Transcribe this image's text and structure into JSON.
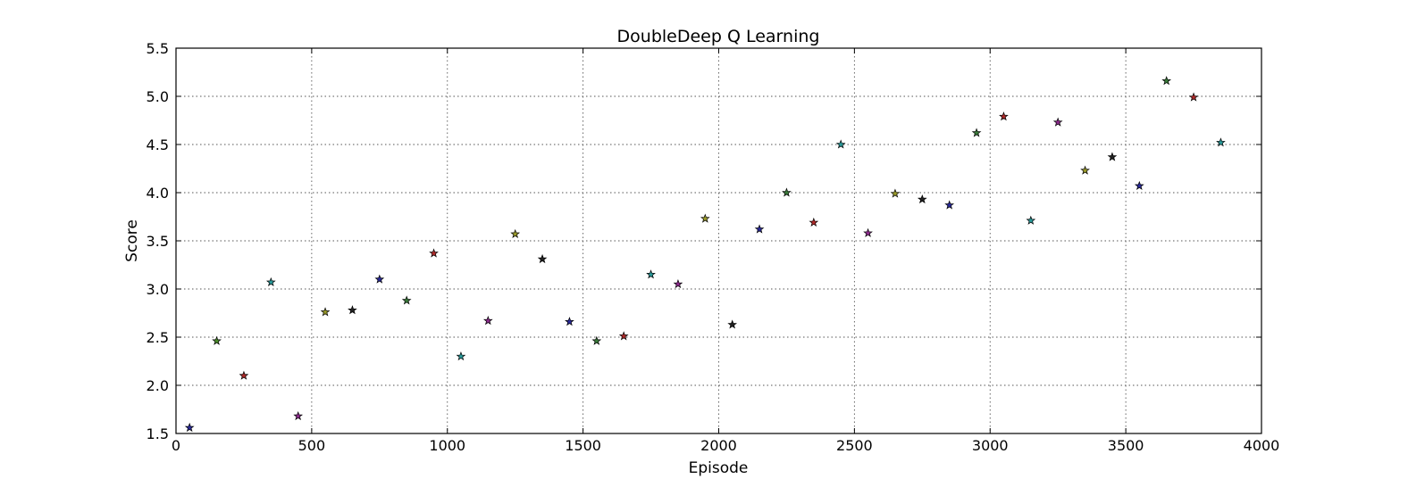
{
  "chart_data": {
    "type": "scatter",
    "title": "DoubleDeep Q Learning",
    "xlabel": "Episode",
    "ylabel": "Score",
    "xlim": [
      0,
      4000
    ],
    "ylim": [
      1.5,
      5.5
    ],
    "xticks": [
      "0",
      "500",
      "1000",
      "1500",
      "2000",
      "2500",
      "3000",
      "3500",
      "4000"
    ],
    "yticks": [
      "1.5",
      "2.0",
      "2.5",
      "3.0",
      "3.5",
      "4.0",
      "4.5",
      "5.0",
      "5.5"
    ],
    "grid": true,
    "marker": "star",
    "points": [
      {
        "x": 50,
        "y": 1.56,
        "color": "#2a2a9a"
      },
      {
        "x": 150,
        "y": 2.46,
        "color": "#4a8a2a"
      },
      {
        "x": 250,
        "y": 2.1,
        "color": "#b02a2a"
      },
      {
        "x": 350,
        "y": 3.07,
        "color": "#2a9a9a"
      },
      {
        "x": 450,
        "y": 1.68,
        "color": "#8a2a8a"
      },
      {
        "x": 550,
        "y": 2.76,
        "color": "#9a9a2a"
      },
      {
        "x": 650,
        "y": 2.78,
        "color": "#222222"
      },
      {
        "x": 750,
        "y": 3.1,
        "color": "#2a2a9a"
      },
      {
        "x": 850,
        "y": 2.88,
        "color": "#3a7a3a"
      },
      {
        "x": 950,
        "y": 3.37,
        "color": "#b02a2a"
      },
      {
        "x": 1050,
        "y": 2.3,
        "color": "#2a9a9a"
      },
      {
        "x": 1150,
        "y": 2.67,
        "color": "#8a2a8a"
      },
      {
        "x": 1250,
        "y": 3.57,
        "color": "#9a9a2a"
      },
      {
        "x": 1350,
        "y": 3.31,
        "color": "#222222"
      },
      {
        "x": 1450,
        "y": 2.66,
        "color": "#2a2a9a"
      },
      {
        "x": 1550,
        "y": 2.46,
        "color": "#3a7a3a"
      },
      {
        "x": 1650,
        "y": 2.51,
        "color": "#b02a2a"
      },
      {
        "x": 1750,
        "y": 3.15,
        "color": "#2a9a9a"
      },
      {
        "x": 1850,
        "y": 3.05,
        "color": "#8a2a8a"
      },
      {
        "x": 1950,
        "y": 3.73,
        "color": "#9a9a2a"
      },
      {
        "x": 2050,
        "y": 2.63,
        "color": "#222222"
      },
      {
        "x": 2150,
        "y": 3.62,
        "color": "#2a2a9a"
      },
      {
        "x": 2250,
        "y": 4.0,
        "color": "#3a7a3a"
      },
      {
        "x": 2350,
        "y": 3.69,
        "color": "#b02a2a"
      },
      {
        "x": 2450,
        "y": 4.5,
        "color": "#2a9a9a"
      },
      {
        "x": 2550,
        "y": 3.58,
        "color": "#8a2a8a"
      },
      {
        "x": 2650,
        "y": 3.99,
        "color": "#9a9a2a"
      },
      {
        "x": 2750,
        "y": 3.93,
        "color": "#222222"
      },
      {
        "x": 2850,
        "y": 3.87,
        "color": "#2a2a9a"
      },
      {
        "x": 2950,
        "y": 4.62,
        "color": "#3a7a3a"
      },
      {
        "x": 3050,
        "y": 4.79,
        "color": "#b02a2a"
      },
      {
        "x": 3150,
        "y": 3.71,
        "color": "#2a9a9a"
      },
      {
        "x": 3250,
        "y": 4.73,
        "color": "#8a2a8a"
      },
      {
        "x": 3350,
        "y": 4.23,
        "color": "#9a9a2a"
      },
      {
        "x": 3450,
        "y": 4.37,
        "color": "#222222"
      },
      {
        "x": 3550,
        "y": 4.07,
        "color": "#2a2a9a"
      },
      {
        "x": 3650,
        "y": 5.16,
        "color": "#3a7a3a"
      },
      {
        "x": 3750,
        "y": 4.99,
        "color": "#b02a2a"
      },
      {
        "x": 3850,
        "y": 4.52,
        "color": "#2a9a9a"
      }
    ]
  }
}
